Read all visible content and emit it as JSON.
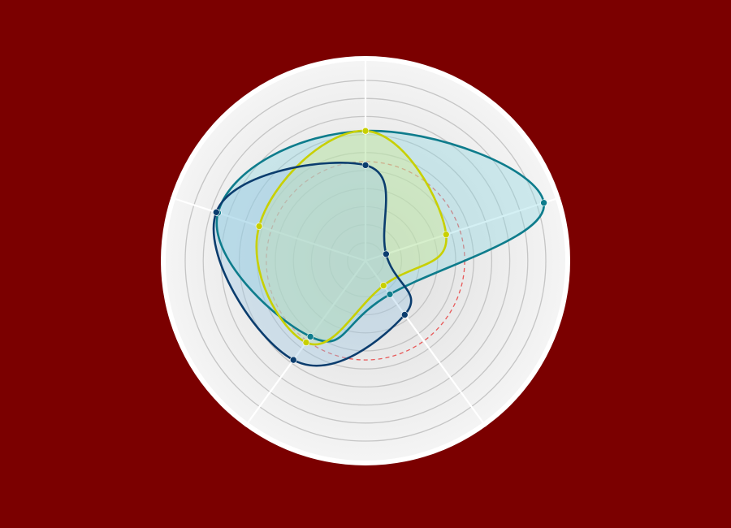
{
  "chart_data": {
    "type": "radar",
    "title": "",
    "axes_count": 5,
    "rmax": 10,
    "ring_count": 10,
    "reference_circle": {
      "value": 5.5,
      "color": "#e85a5a",
      "style": "dashed"
    },
    "grid": true,
    "legend": "none",
    "series": [
      {
        "values": [
          7.2,
          10.4,
          2.3,
          5.2,
          8.6
        ],
        "color": "#0e7c8c",
        "fill": "#8ed7e3"
      },
      {
        "values": [
          7.2,
          4.7,
          1.7,
          5.6,
          6.2
        ],
        "color": "#c8d000",
        "fill": "#d9ec8c"
      },
      {
        "values": [
          5.3,
          1.2,
          3.7,
          6.8,
          8.7
        ],
        "color": "#0b3d6e",
        "fill": "#9fc7e6"
      }
    ]
  },
  "colors": {
    "background": "#7b0000",
    "plot_area": "#f1f1f1",
    "ring_line": "#bdbdbd",
    "spoke_line": "#ffffff"
  }
}
